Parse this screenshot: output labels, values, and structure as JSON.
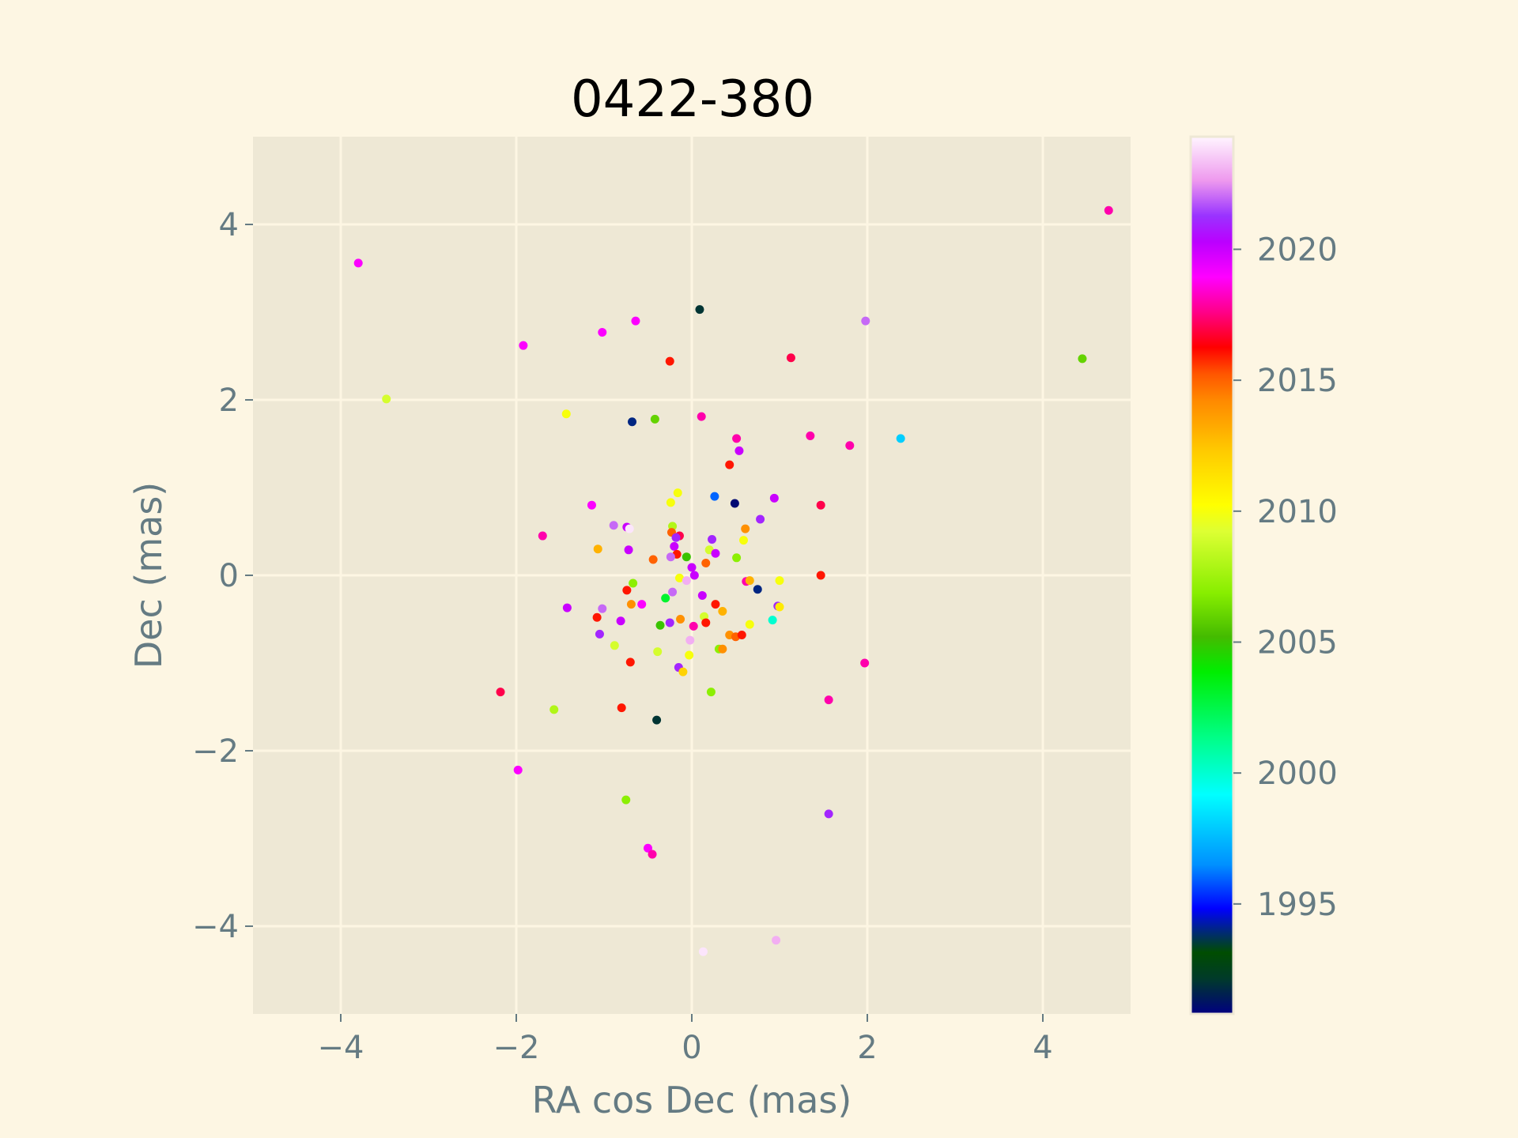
{
  "chart_data": {
    "type": "scatter",
    "title": "0422-380",
    "xlabel": "RA cos Dec (mas)",
    "ylabel": "Dec (mas)",
    "xlim": [
      -5,
      5
    ],
    "ylim": [
      -5,
      5
    ],
    "xticks": [
      -4,
      -2,
      0,
      2,
      4
    ],
    "yticks": [
      -4,
      -2,
      0,
      2,
      4
    ],
    "grid": true,
    "colorbar": {
      "label": "",
      "range": [
        1990.8,
        2024.3
      ],
      "ticks": [
        1995,
        2000,
        2005,
        2010,
        2015,
        2020
      ],
      "colormap": "gist_ncar-like"
    },
    "points": [
      {
        "x": 4.75,
        "y": 4.16,
        "t": 2018
      },
      {
        "x": -3.8,
        "y": 3.56,
        "t": 2019
      },
      {
        "x": 0.09,
        "y": 3.03,
        "t": 1992
      },
      {
        "x": 1.98,
        "y": 2.9,
        "t": 2022
      },
      {
        "x": -0.64,
        "y": 2.9,
        "t": 2019
      },
      {
        "x": -1.02,
        "y": 2.77,
        "t": 2019
      },
      {
        "x": -1.92,
        "y": 2.62,
        "t": 2019
      },
      {
        "x": 1.13,
        "y": 2.48,
        "t": 2017
      },
      {
        "x": -0.25,
        "y": 2.44,
        "t": 2016
      },
      {
        "x": 4.45,
        "y": 2.47,
        "t": 2006
      },
      {
        "x": -3.48,
        "y": 2.01,
        "t": 2009
      },
      {
        "x": -1.43,
        "y": 1.84,
        "t": 2010
      },
      {
        "x": -0.68,
        "y": 1.75,
        "t": 1994
      },
      {
        "x": -0.42,
        "y": 1.78,
        "t": 2006
      },
      {
        "x": 0.11,
        "y": 1.81,
        "t": 2018
      },
      {
        "x": 0.51,
        "y": 1.56,
        "t": 2018
      },
      {
        "x": 1.35,
        "y": 1.59,
        "t": 2018
      },
      {
        "x": 1.8,
        "y": 1.48,
        "t": 2018
      },
      {
        "x": 2.38,
        "y": 1.56,
        "t": 1998
      },
      {
        "x": 0.54,
        "y": 1.42,
        "t": 2020
      },
      {
        "x": 0.43,
        "y": 1.26,
        "t": 2016
      },
      {
        "x": -0.16,
        "y": 0.94,
        "t": 2010
      },
      {
        "x": 0.26,
        "y": 0.9,
        "t": 1996
      },
      {
        "x": 0.94,
        "y": 0.88,
        "t": 2020
      },
      {
        "x": -0.24,
        "y": 0.83,
        "t": 2010
      },
      {
        "x": 0.49,
        "y": 0.82,
        "t": 1991
      },
      {
        "x": -1.14,
        "y": 0.8,
        "t": 2019
      },
      {
        "x": 1.47,
        "y": 0.8,
        "t": 2017
      },
      {
        "x": 0.78,
        "y": 0.64,
        "t": 2021
      },
      {
        "x": -0.89,
        "y": 0.57,
        "t": 2022
      },
      {
        "x": -0.74,
        "y": 0.55,
        "t": 2020
      },
      {
        "x": -0.71,
        "y": 0.53,
        "t": 2024
      },
      {
        "x": -0.22,
        "y": 0.56,
        "t": 2008
      },
      {
        "x": 0.61,
        "y": 0.53,
        "t": 2014
      },
      {
        "x": -0.23,
        "y": 0.49,
        "t": 2015
      },
      {
        "x": -0.14,
        "y": 0.45,
        "t": 2017
      },
      {
        "x": -0.18,
        "y": 0.43,
        "t": 2021
      },
      {
        "x": -1.7,
        "y": 0.45,
        "t": 2018
      },
      {
        "x": 0.23,
        "y": 0.41,
        "t": 2021
      },
      {
        "x": 0.59,
        "y": 0.4,
        "t": 2010
      },
      {
        "x": -0.2,
        "y": 0.33,
        "t": 2020
      },
      {
        "x": -1.07,
        "y": 0.3,
        "t": 2013
      },
      {
        "x": -0.72,
        "y": 0.29,
        "t": 2020
      },
      {
        "x": 0.2,
        "y": 0.29,
        "t": 2009
      },
      {
        "x": 0.27,
        "y": 0.25,
        "t": 2020
      },
      {
        "x": -0.17,
        "y": 0.24,
        "t": 2016
      },
      {
        "x": -0.06,
        "y": 0.21,
        "t": 2005
      },
      {
        "x": -0.24,
        "y": 0.21,
        "t": 2022
      },
      {
        "x": 0.51,
        "y": 0.2,
        "t": 2007
      },
      {
        "x": -0.44,
        "y": 0.18,
        "t": 2015
      },
      {
        "x": 0.16,
        "y": 0.14,
        "t": 2015
      },
      {
        "x": 0.0,
        "y": 0.09,
        "t": 2020
      },
      {
        "x": 0.03,
        "y": 0.0,
        "t": 2020
      },
      {
        "x": -0.14,
        "y": -0.03,
        "t": 2010
      },
      {
        "x": 1.47,
        "y": 0.0,
        "t": 2016
      },
      {
        "x": 1.0,
        "y": -0.06,
        "t": 2010
      },
      {
        "x": 0.62,
        "y": -0.07,
        "t": 2018
      },
      {
        "x": 0.66,
        "y": -0.06,
        "t": 2013
      },
      {
        "x": -0.67,
        "y": -0.09,
        "t": 2007
      },
      {
        "x": -0.06,
        "y": -0.06,
        "t": 2023
      },
      {
        "x": 0.75,
        "y": -0.16,
        "t": 1994
      },
      {
        "x": -0.74,
        "y": -0.17,
        "t": 2016
      },
      {
        "x": 0.12,
        "y": -0.23,
        "t": 2020
      },
      {
        "x": -0.22,
        "y": -0.19,
        "t": 2022
      },
      {
        "x": -0.3,
        "y": -0.26,
        "t": 2003
      },
      {
        "x": 0.27,
        "y": -0.33,
        "t": 2016
      },
      {
        "x": -0.57,
        "y": -0.33,
        "t": 2019
      },
      {
        "x": -0.69,
        "y": -0.33,
        "t": 2014
      },
      {
        "x": 0.98,
        "y": -0.35,
        "t": 2021
      },
      {
        "x": 1.0,
        "y": -0.36,
        "t": 2011
      },
      {
        "x": -1.42,
        "y": -0.37,
        "t": 2020
      },
      {
        "x": -1.02,
        "y": -0.38,
        "t": 2022
      },
      {
        "x": 0.35,
        "y": -0.41,
        "t": 2013
      },
      {
        "x": 0.14,
        "y": -0.47,
        "t": 2009
      },
      {
        "x": -1.08,
        "y": -0.48,
        "t": 2016
      },
      {
        "x": -0.13,
        "y": -0.5,
        "t": 2014
      },
      {
        "x": -0.81,
        "y": -0.52,
        "t": 2020
      },
      {
        "x": 0.16,
        "y": -0.54,
        "t": 2016
      },
      {
        "x": 0.92,
        "y": -0.51,
        "t": 2000
      },
      {
        "x": -0.25,
        "y": -0.54,
        "t": 2021
      },
      {
        "x": -0.36,
        "y": -0.57,
        "t": 2005
      },
      {
        "x": 0.02,
        "y": -0.58,
        "t": 2018
      },
      {
        "x": 0.66,
        "y": -0.56,
        "t": 2010
      },
      {
        "x": -1.05,
        "y": -0.67,
        "t": 2021
      },
      {
        "x": 0.43,
        "y": -0.68,
        "t": 2014
      },
      {
        "x": 0.5,
        "y": -0.7,
        "t": 2015
      },
      {
        "x": 0.57,
        "y": -0.68,
        "t": 2016
      },
      {
        "x": -0.02,
        "y": -0.74,
        "t": 2023
      },
      {
        "x": -0.88,
        "y": -0.8,
        "t": 2009
      },
      {
        "x": 0.31,
        "y": -0.84,
        "t": 2007
      },
      {
        "x": 0.35,
        "y": -0.84,
        "t": 2014
      },
      {
        "x": -0.39,
        "y": -0.87,
        "t": 2009
      },
      {
        "x": -0.03,
        "y": -0.91,
        "t": 2010
      },
      {
        "x": -0.7,
        "y": -0.99,
        "t": 2016
      },
      {
        "x": 1.97,
        "y": -1.0,
        "t": 2018
      },
      {
        "x": -0.15,
        "y": -1.05,
        "t": 2021
      },
      {
        "x": -0.1,
        "y": -1.1,
        "t": 2012
      },
      {
        "x": 0.22,
        "y": -1.33,
        "t": 2007
      },
      {
        "x": -2.18,
        "y": -1.33,
        "t": 2017
      },
      {
        "x": 1.56,
        "y": -1.42,
        "t": 2018
      },
      {
        "x": -1.57,
        "y": -1.53,
        "t": 2008
      },
      {
        "x": -0.8,
        "y": -1.51,
        "t": 2016
      },
      {
        "x": -0.4,
        "y": -1.65,
        "t": 1992
      },
      {
        "x": -1.98,
        "y": -2.22,
        "t": 2019
      },
      {
        "x": -0.75,
        "y": -2.56,
        "t": 2007
      },
      {
        "x": 1.56,
        "y": -2.72,
        "t": 2021
      },
      {
        "x": -0.5,
        "y": -3.11,
        "t": 2019
      },
      {
        "x": -0.45,
        "y": -3.18,
        "t": 2018
      },
      {
        "x": 0.96,
        "y": -4.16,
        "t": 2023
      },
      {
        "x": 0.13,
        "y": -4.29,
        "t": 2024
      }
    ]
  }
}
